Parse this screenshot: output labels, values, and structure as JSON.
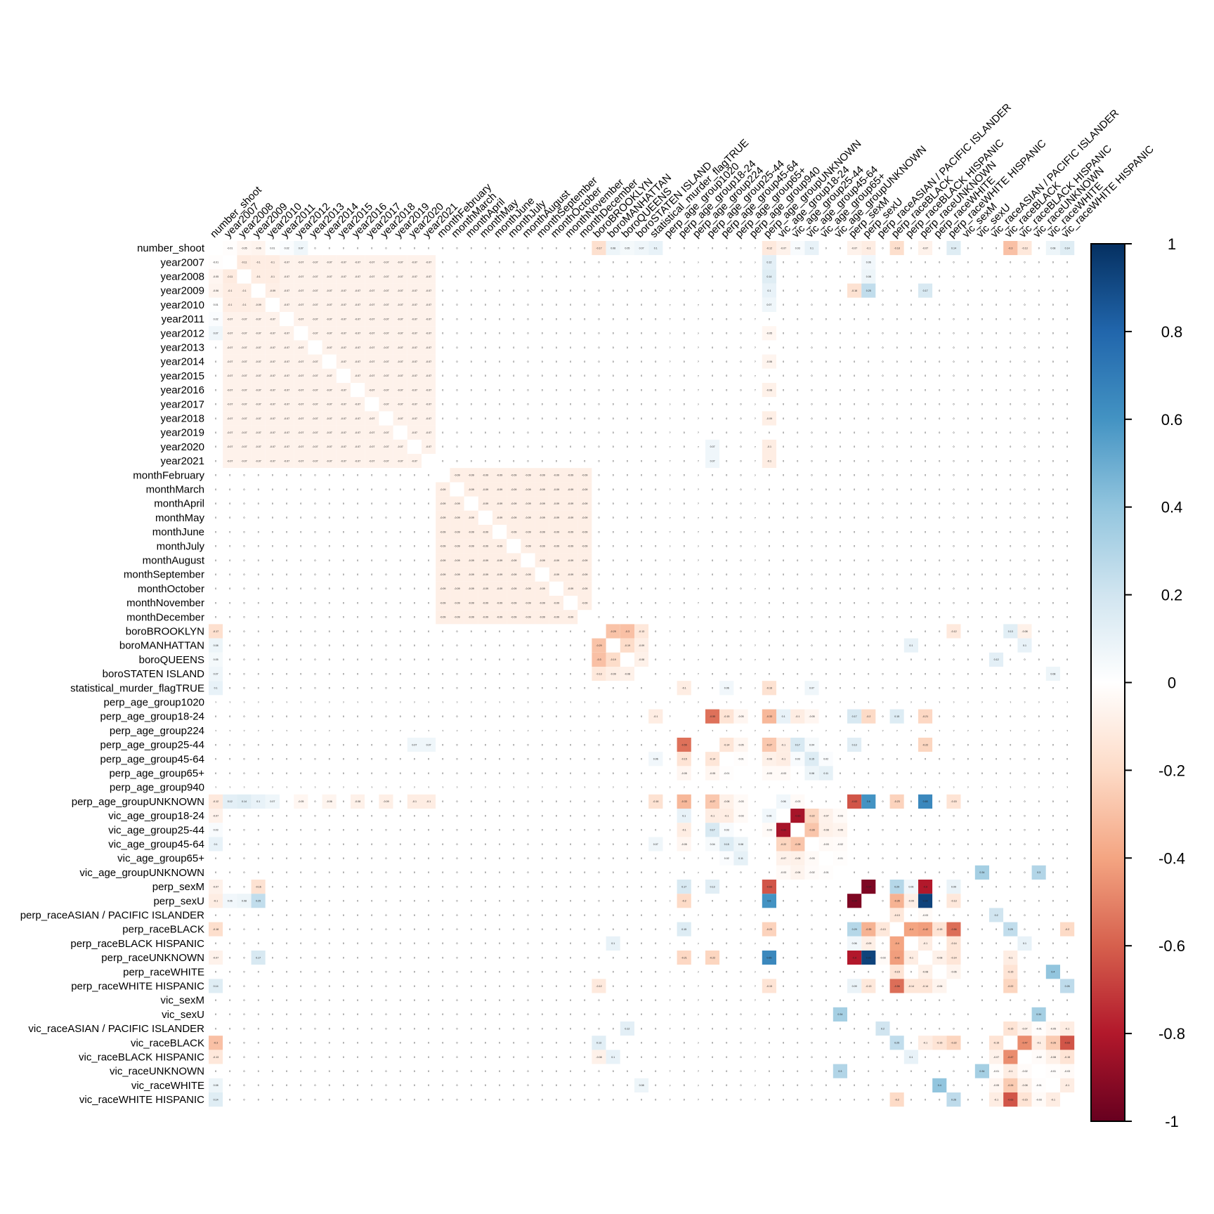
{
  "chart_data": {
    "type": "heatmap",
    "title": "",
    "subtype": "correlation matrix (lower/upper full, diagonal blank)",
    "variables": [
      "number_shoot",
      "year2007",
      "year2008",
      "year2009",
      "year2010",
      "year2011",
      "year2012",
      "year2013",
      "year2014",
      "year2015",
      "year2016",
      "year2017",
      "year2018",
      "year2019",
      "year2020",
      "year2021",
      "monthFebruary",
      "monthMarch",
      "monthApril",
      "monthMay",
      "monthJune",
      "monthJuly",
      "monthAugust",
      "monthSeptember",
      "monthOctober",
      "monthNovember",
      "monthDecember",
      "boroBROOKLYN",
      "boroMANHATTAN",
      "boroQUEENS",
      "boroSTATEN ISLAND",
      "statistical_murder_flagTRUE",
      "perp_age_group1020",
      "perp_age_group18-24",
      "perp_age_group224",
      "perp_age_group25-44",
      "perp_age_group45-64",
      "perp_age_group65+",
      "perp_age_group940",
      "perp_age_groupUNKNOWN",
      "vic_age_group18-24",
      "vic_age_group25-44",
      "vic_age_group45-64",
      "vic_age_group65+",
      "vic_age_groupUNKNOWN",
      "perp_sexM",
      "perp_sexU",
      "perp_raceASIAN / PACIFIC ISLANDER",
      "perp_raceBLACK",
      "perp_raceBLACK HISPANIC",
      "perp_raceUNKNOWN",
      "perp_raceWHITE",
      "perp_raceWHITE HISPANIC",
      "vic_sexM",
      "vic_sexU",
      "vic_raceASIAN / PACIFIC ISLANDER",
      "vic_raceBLACK",
      "vic_raceBLACK HISPANIC",
      "vic_raceUNKNOWN",
      "vic_raceWHITE",
      "vic_raceWHITE HISPANIC"
    ],
    "na_variables": [
      "perp_age_group1020",
      "perp_age_group224",
      "perp_age_group940"
    ],
    "na_label": "?",
    "default_value": 0,
    "blocks": [
      {
        "from": "year2007",
        "to": "year2021",
        "value": -0.07
      },
      {
        "from": "monthFebruary",
        "to": "monthDecember",
        "value": -0.09
      }
    ],
    "pairs": [
      [
        0,
        1,
        -0.01
      ],
      [
        0,
        2,
        -0.05
      ],
      [
        0,
        3,
        -0.06
      ],
      [
        0,
        4,
        0.01
      ],
      [
        0,
        5,
        0.02
      ],
      [
        0,
        6,
        0.07
      ],
      [
        0,
        27,
        -0.17
      ],
      [
        0,
        28,
        0.08
      ],
      [
        0,
        29,
        0.05
      ],
      [
        0,
        30,
        0.07
      ],
      [
        0,
        31,
        0.1
      ],
      [
        0,
        39,
        -0.12
      ],
      [
        0,
        40,
        -0.07
      ],
      [
        0,
        41,
        0.03
      ],
      [
        0,
        42,
        0.1
      ],
      [
        0,
        45,
        -0.07
      ],
      [
        0,
        46,
        -0.1
      ],
      [
        0,
        48,
        -0.18
      ],
      [
        0,
        50,
        -0.07
      ],
      [
        0,
        52,
        0.14
      ],
      [
        0,
        56,
        -0.3
      ],
      [
        0,
        57,
        -0.13
      ],
      [
        0,
        59,
        0.08
      ],
      [
        0,
        60,
        0.14
      ],
      [
        1,
        2,
        -0.11
      ],
      [
        1,
        3,
        -0.1
      ],
      [
        2,
        3,
        -0.1
      ],
      [
        1,
        4,
        -0.1
      ],
      [
        2,
        4,
        -0.1
      ],
      [
        3,
        4,
        -0.09
      ],
      [
        1,
        39,
        0.12
      ],
      [
        2,
        39,
        0.14
      ],
      [
        3,
        39,
        0.1
      ],
      [
        4,
        39,
        0.07
      ],
      [
        6,
        39,
        -0.05
      ],
      [
        8,
        39,
        -0.06
      ],
      [
        10,
        39,
        -0.08
      ],
      [
        12,
        39,
        -0.09
      ],
      [
        14,
        39,
        -0.1
      ],
      [
        15,
        39,
        -0.1
      ],
      [
        3,
        45,
        -0.16
      ],
      [
        3,
        46,
        0.25
      ],
      [
        3,
        50,
        0.17
      ],
      [
        1,
        46,
        0.06
      ],
      [
        2,
        46,
        0.08
      ],
      [
        14,
        35,
        0.07
      ],
      [
        15,
        35,
        0.07
      ],
      [
        27,
        28,
        -0.29
      ],
      [
        27,
        29,
        -0.3
      ],
      [
        27,
        30,
        -0.13
      ],
      [
        28,
        29,
        -0.19
      ],
      [
        28,
        30,
        -0.09
      ],
      [
        29,
        30,
        -0.08
      ],
      [
        27,
        56,
        0.13
      ],
      [
        27,
        57,
        -0.08
      ],
      [
        27,
        52,
        -0.12
      ],
      [
        28,
        49,
        0.1
      ],
      [
        28,
        57,
        0.1
      ],
      [
        29,
        55,
        0.12
      ],
      [
        30,
        59,
        0.08
      ],
      [
        31,
        33,
        -0.1
      ],
      [
        31,
        36,
        0.06
      ],
      [
        31,
        39,
        -0.16
      ],
      [
        31,
        42,
        0.07
      ],
      [
        33,
        35,
        -0.55
      ],
      [
        33,
        36,
        -0.15
      ],
      [
        33,
        37,
        -0.05
      ],
      [
        33,
        39,
        -0.33
      ],
      [
        35,
        36,
        -0.14
      ],
      [
        35,
        37,
        -0.05
      ],
      [
        35,
        39,
        -0.27
      ],
      [
        36,
        37,
        -0.01
      ],
      [
        36,
        39,
        -0.08
      ],
      [
        37,
        39,
        -0.03
      ],
      [
        33,
        40,
        0.1
      ],
      [
        35,
        40,
        -0.1
      ],
      [
        36,
        40,
        -0.1
      ],
      [
        37,
        40,
        -0.03
      ],
      [
        39,
        40,
        0.06
      ],
      [
        33,
        41,
        -0.1
      ],
      [
        35,
        41,
        0.17
      ],
      [
        36,
        41,
        0.03
      ],
      [
        39,
        41,
        -0.03
      ],
      [
        33,
        42,
        -0.05
      ],
      [
        35,
        42,
        0.04
      ],
      [
        36,
        42,
        0.15
      ],
      [
        37,
        42,
        0.08
      ],
      [
        36,
        43,
        0.02
      ],
      [
        37,
        43,
        0.11
      ],
      [
        40,
        41,
        -0.83
      ],
      [
        40,
        42,
        -0.22
      ],
      [
        40,
        43,
        -0.07
      ],
      [
        40,
        44,
        -0.03
      ],
      [
        41,
        42,
        -0.28
      ],
      [
        41,
        43,
        -0.08
      ],
      [
        41,
        44,
        -0.06
      ],
      [
        42,
        43,
        -0.03
      ],
      [
        42,
        44,
        -0.02
      ],
      [
        43,
        44,
        -0.01
      ],
      [
        39,
        45,
        -0.63
      ],
      [
        39,
        46,
        0.6
      ],
      [
        39,
        48,
        -0.23
      ],
      [
        39,
        50,
        0.65
      ],
      [
        39,
        52,
        -0.15
      ],
      [
        33,
        45,
        0.17
      ],
      [
        33,
        46,
        -0.2
      ],
      [
        33,
        50,
        -0.21
      ],
      [
        35,
        45,
        0.13
      ],
      [
        35,
        50,
        -0.22
      ],
      [
        33,
        48,
        0.15
      ],
      [
        45,
        46,
        -0.94
      ],
      [
        45,
        48,
        0.29
      ],
      [
        45,
        49,
        0.06
      ],
      [
        45,
        50,
        -0.8
      ],
      [
        45,
        52,
        0.09
      ],
      [
        46,
        48,
        -0.35
      ],
      [
        46,
        49,
        -0.09
      ],
      [
        46,
        50,
        0.93
      ],
      [
        46,
        52,
        -0.13
      ],
      [
        47,
        48,
        -0.13
      ],
      [
        47,
        50,
        -0.03
      ],
      [
        48,
        49,
        -0.4
      ],
      [
        48,
        50,
        -0.42
      ],
      [
        48,
        51,
        -0.15
      ],
      [
        48,
        52,
        -0.56
      ],
      [
        49,
        50,
        -0.1
      ],
      [
        49,
        52,
        -0.14
      ],
      [
        50,
        51,
        -0.08
      ],
      [
        50,
        52,
        -0.14
      ],
      [
        51,
        52,
        -0.06
      ],
      [
        44,
        54,
        0.34
      ],
      [
        54,
        58,
        0.34
      ],
      [
        44,
        58,
        0.3
      ],
      [
        55,
        56,
        -0.15
      ],
      [
        55,
        57,
        -0.07
      ],
      [
        55,
        58,
        -0.01
      ],
      [
        55,
        59,
        -0.05
      ],
      [
        55,
        60,
        -0.1
      ],
      [
        56,
        57,
        -0.47
      ],
      [
        56,
        58,
        -0.1
      ],
      [
        56,
        59,
        -0.26
      ],
      [
        56,
        60,
        -0.63
      ],
      [
        57,
        58,
        -0.02
      ],
      [
        57,
        59,
        -0.08
      ],
      [
        57,
        60,
        -0.15
      ],
      [
        58,
        59,
        -0.01
      ],
      [
        58,
        60,
        -0.03
      ],
      [
        59,
        60,
        -0.1
      ],
      [
        47,
        55,
        0.2
      ],
      [
        48,
        56,
        0.25
      ],
      [
        48,
        60,
        -0.2
      ],
      [
        49,
        57,
        0.1
      ],
      [
        51,
        59,
        0.4
      ],
      [
        52,
        60,
        0.26
      ],
      [
        52,
        56,
        -0.22
      ],
      [
        51,
        56,
        -0.15
      ],
      [
        50,
        56,
        -0.1
      ]
    ],
    "colorbar": {
      "range": [
        -1,
        1
      ],
      "ticks": [
        "1",
        "0.8",
        "0.6",
        "0.4",
        "0.2",
        "0",
        "-0.2",
        "-0.4",
        "-0.6",
        "-0.8",
        "-1"
      ],
      "tick_values": [
        1,
        0.8,
        0.6,
        0.4,
        0.2,
        0,
        -0.2,
        -0.4,
        -0.6,
        -0.8,
        -1
      ],
      "colors": [
        "#67001F",
        "#B2182B",
        "#D6604D",
        "#F4A582",
        "#FDDBC7",
        "#FFFFFF",
        "#D1E5F0",
        "#92C5DE",
        "#4393C3",
        "#2166AC",
        "#053061"
      ]
    },
    "legend_placement": "right"
  }
}
